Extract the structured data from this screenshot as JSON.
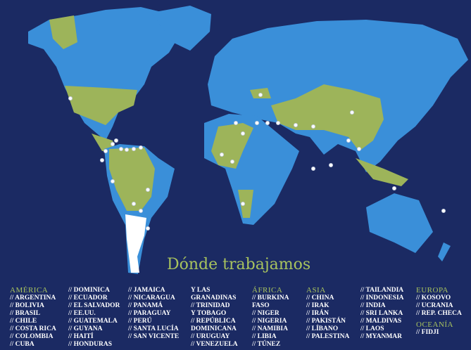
{
  "title": "Dónde trabajamos",
  "colors": {
    "background": "#1b2a63",
    "land": "#3a8fd9",
    "highlight": "#9db45a",
    "argentina": "#ffffff",
    "heading": "#a8c35e"
  },
  "regions": [
    {
      "heading": "AMÉRICA",
      "columns": [
        [
          "// ARGENTINA",
          "// BOLIVIA",
          "// BRASIL",
          "// CHILE",
          "// COSTA RICA",
          "// COLOMBIA",
          "// CUBA"
        ],
        [
          "// DOMINICA",
          "// ECUADOR",
          "// EL SALVADOR",
          "// EE.UU.",
          "// GUATEMALA",
          "// GUYANA",
          "// HAITÍ",
          "// HONDURAS"
        ],
        [
          "// JAMAICA",
          "// NICARAGUA",
          "// PANAMÁ",
          "// PARAGUAY",
          "// PERÚ",
          "// SANTA LUCÍA",
          "// SAN VICENTE"
        ],
        [
          "Y LAS",
          "GRANADINAS",
          "// TRINIDAD",
          "Y TOBAGO",
          "// REPÚBLICA",
          "DOMINICANA",
          "// URUGUAY",
          "// VENEZUELA"
        ]
      ]
    },
    {
      "heading": "ÁFRICA",
      "columns": [
        [
          "// BURKINA",
          "FASO",
          "// NIGER",
          "// NIGERIA",
          "// NAMIBIA",
          "// LIBIA",
          "// TÚNEZ"
        ]
      ]
    },
    {
      "heading": "ASIA",
      "columns": [
        [
          "// CHINA",
          "// IRAK",
          "// IRÁN",
          "// PAKISTÁN",
          "// LÍBANO",
          "// PALESTINA"
        ],
        [
          "// TAILANDIA",
          "// INDONESIA",
          "// INDIA",
          "// SRI LANKA",
          "// MALDIVAS",
          "// LAOS",
          "// MYANMAR"
        ]
      ]
    },
    {
      "heading": "EUROPA",
      "columns": [
        [
          "// KOSOVO",
          "// UCRANIA",
          "// REP. CHECA"
        ]
      ]
    },
    {
      "heading": "OCEANÍA",
      "columns": [
        [
          "// FIDJI"
        ]
      ]
    }
  ]
}
